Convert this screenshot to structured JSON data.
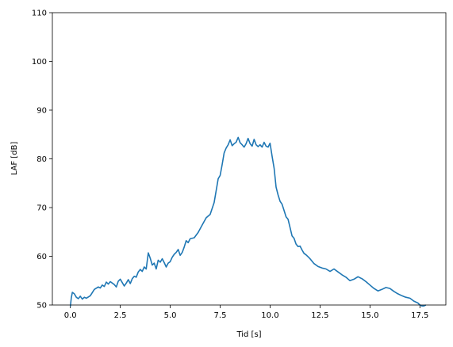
{
  "chart_data": {
    "type": "line",
    "xlabel": "Tid [s]",
    "ylabel": "LAF [dB]",
    "xlim": [
      -0.9,
      18.8
    ],
    "ylim": [
      50,
      110
    ],
    "xticks": [
      "0.0",
      "2.5",
      "5.0",
      "7.5",
      "10.0",
      "12.5",
      "15.0",
      "17.5"
    ],
    "yticks": [
      "50",
      "60",
      "70",
      "80",
      "90",
      "100",
      "110"
    ],
    "grid": false,
    "color": "#1f77b4",
    "series": [
      {
        "x": [
          0.0,
          0.05,
          0.1,
          0.2,
          0.3,
          0.4,
          0.5,
          0.6,
          0.7,
          0.8,
          1.0,
          1.2,
          1.4,
          1.5,
          1.6,
          1.7,
          1.8,
          1.9,
          2.0,
          2.2,
          2.3,
          2.4,
          2.5,
          2.6,
          2.7,
          2.8,
          2.9,
          3.0,
          3.1,
          3.2,
          3.3,
          3.4,
          3.5,
          3.6,
          3.7,
          3.8,
          3.9,
          4.0,
          4.1,
          4.2,
          4.3,
          4.4,
          4.5,
          4.6,
          4.7,
          4.8,
          4.9,
          5.0,
          5.1,
          5.2,
          5.3,
          5.4,
          5.5,
          5.6,
          5.7,
          5.8,
          5.9,
          6.0,
          6.2,
          6.4,
          6.6,
          6.8,
          7.0,
          7.2,
          7.3,
          7.4,
          7.5,
          7.6,
          7.7,
          7.8,
          7.9,
          8.0,
          8.1,
          8.2,
          8.3,
          8.4,
          8.5,
          8.6,
          8.7,
          8.8,
          8.9,
          9.0,
          9.1,
          9.2,
          9.3,
          9.4,
          9.5,
          9.6,
          9.7,
          9.8,
          9.9,
          10.0,
          10.1,
          10.2,
          10.3,
          10.4,
          10.5,
          10.6,
          10.7,
          10.8,
          10.9,
          11.0,
          11.1,
          11.2,
          11.3,
          11.4,
          11.5,
          11.6,
          11.7,
          11.8,
          11.9,
          12.0,
          12.2,
          12.4,
          12.6,
          12.8,
          13.0,
          13.2,
          13.4,
          13.6,
          13.8,
          14.0,
          14.2,
          14.4,
          14.6,
          14.8,
          15.0,
          15.2,
          15.4,
          15.6,
          15.8,
          16.0,
          16.2,
          16.4,
          16.6,
          16.8,
          17.0,
          17.2,
          17.4,
          17.5,
          17.6,
          17.7,
          17.8
        ],
        "y": [
          49.7,
          51.5,
          52.6,
          52.3,
          51.6,
          51.3,
          51.8,
          51.2,
          51.6,
          51.4,
          51.9,
          53.2,
          53.7,
          53.5,
          54.1,
          53.8,
          54.7,
          54.3,
          54.8,
          54.2,
          53.7,
          54.9,
          55.3,
          54.6,
          53.9,
          54.5,
          55.2,
          54.4,
          55.4,
          55.9,
          55.7,
          56.8,
          57.3,
          56.9,
          57.8,
          57.4,
          60.7,
          59.6,
          58.2,
          58.6,
          57.4,
          59.2,
          58.8,
          59.5,
          58.7,
          57.8,
          58.6,
          58.9,
          59.8,
          60.4,
          60.8,
          61.4,
          60.2,
          60.8,
          61.9,
          63.2,
          62.8,
          63.6,
          63.8,
          64.9,
          66.4,
          67.9,
          68.6,
          71.0,
          73.5,
          75.9,
          76.6,
          78.8,
          81.2,
          82.2,
          82.9,
          83.9,
          82.7,
          83.1,
          83.4,
          84.4,
          83.3,
          82.9,
          82.4,
          83.1,
          84.2,
          83.1,
          82.6,
          84.0,
          82.9,
          82.5,
          82.9,
          82.4,
          83.4,
          82.6,
          82.4,
          83.2,
          80.5,
          78.1,
          74.2,
          72.6,
          71.3,
          70.7,
          69.4,
          68.1,
          67.6,
          65.9,
          64.2,
          63.7,
          62.5,
          62.0,
          62.1,
          61.3,
          60.6,
          60.3,
          59.9,
          59.5,
          58.5,
          57.9,
          57.6,
          57.4,
          56.9,
          57.4,
          56.8,
          56.2,
          55.7,
          55.0,
          55.3,
          55.8,
          55.4,
          54.8,
          54.1,
          53.4,
          52.9,
          53.2,
          53.6,
          53.4,
          52.8,
          52.3,
          51.9,
          51.6,
          51.4,
          50.8,
          50.4,
          50.0,
          49.8,
          49.8,
          50.0
        ]
      }
    ]
  }
}
